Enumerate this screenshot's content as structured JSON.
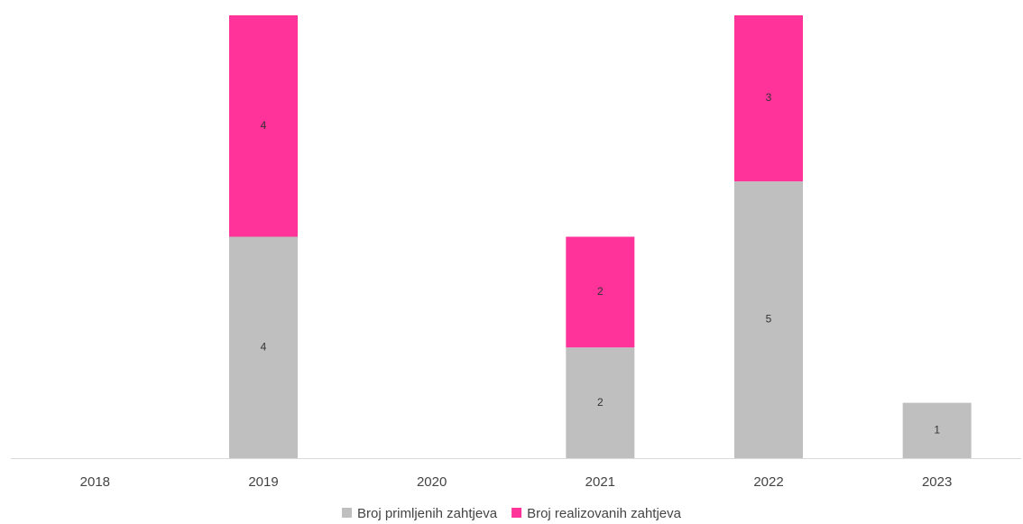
{
  "chart_data": {
    "type": "bar",
    "stacked": true,
    "categories": [
      "2018",
      "2019",
      "2020",
      "2021",
      "2022",
      "2023"
    ],
    "series": [
      {
        "name": "Broj primljenih zahtjeva",
        "color": "#BFBFBF",
        "values": [
          0,
          4,
          0,
          2,
          5,
          1
        ]
      },
      {
        "name": "Broj realizovanih zahtjeva",
        "color": "#FF3399",
        "values": [
          0,
          4,
          0,
          2,
          3,
          0
        ]
      }
    ],
    "ylim": [
      0,
      8
    ],
    "grid": false,
    "legend_position": "bottom",
    "data_labels": true
  }
}
